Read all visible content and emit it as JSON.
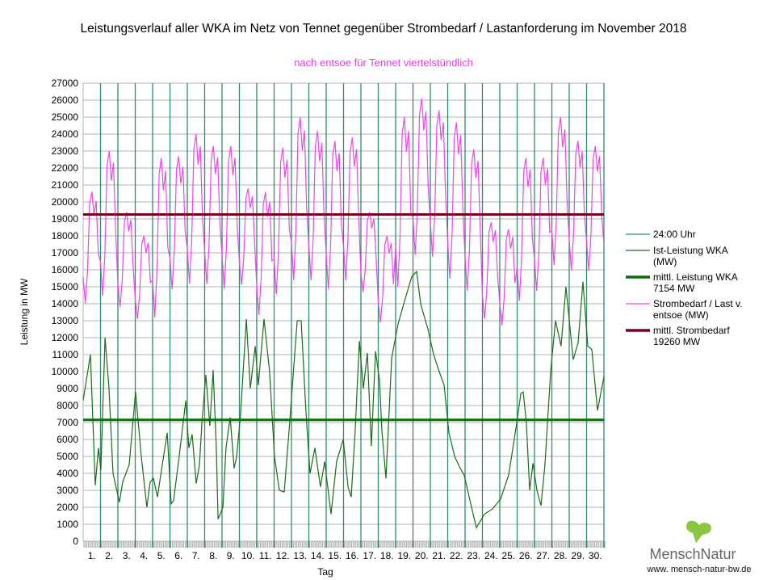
{
  "chart_data": {
    "type": "line",
    "title": "Leistungsverlauf aller WKA im Netz von Tennet gegenüber  Strombedarf / Lastanforderung im November 2018",
    "subtitle": "nach entsoe für Tennet viertelstündlich",
    "xlabel": "Tag",
    "ylabel": "Leistung in MW",
    "ylim": [
      0,
      27000
    ],
    "ytick_step": 1000,
    "xlim": [
      0,
      30
    ],
    "x_tick_labels": [
      "1.",
      "2.",
      "3.",
      "4.",
      "5.",
      "6.",
      "7.",
      "8.",
      "9.",
      "10.",
      "11.",
      "12.",
      "13.",
      "14.",
      "15.",
      "16.",
      "17.",
      "18.",
      "19.",
      "20.",
      "21.",
      "22.",
      "23.",
      "24.",
      "25.",
      "26.",
      "27.",
      "28.",
      "29.",
      "30."
    ],
    "grid": true,
    "legend_position": "right",
    "colors": {
      "midnight": "#2e8b6e",
      "wind": "#1a6b1a",
      "wind_mean": "#0d6b0d",
      "demand": "#ee44ee",
      "demand_mean": "#7a0020"
    },
    "legend": [
      {
        "key": "midnight",
        "line1": "24:00 Uhr",
        "line2": ""
      },
      {
        "key": "wind",
        "line1": "Ist-Leistung WKA",
        "line2": "(MW)"
      },
      {
        "key": "wind_mean",
        "line1": "mittl. Leistung WKA",
        "line2": "7154 MW"
      },
      {
        "key": "demand",
        "line1": "Strombedarf / Last v.",
        "line2": "entsoe (MW)"
      },
      {
        "key": "demand_mean",
        "line1": "mittl. Strombedarf",
        "line2": "19260 MW"
      }
    ],
    "wind_mean": 7154,
    "demand_mean": 19260,
    "demand_daily_min": [
      13900,
      14300,
      13700,
      13000,
      13000,
      14700,
      15000,
      15000,
      14700,
      15000,
      13200,
      14400,
      15200,
      15200,
      14700,
      15200,
      14600,
      12800,
      14800,
      16700,
      16600,
      15300,
      14600,
      13000,
      12600,
      14000,
      14600,
      16100,
      15800,
      15800
    ],
    "demand_daily_max": [
      20600,
      23000,
      19400,
      18000,
      22600,
      22700,
      24000,
      23300,
      23300,
      20800,
      20600,
      23200,
      25000,
      24200,
      23600,
      23800,
      19400,
      18000,
      25000,
      26100,
      25400,
      24700,
      23100,
      18800,
      18400,
      22600,
      22600,
      25000,
      23600,
      23300
    ],
    "wind_series": [
      [
        0,
        8300
      ],
      [
        0.42,
        11000
      ],
      [
        0.7,
        3300
      ],
      [
        0.88,
        5500
      ],
      [
        1.02,
        4200
      ],
      [
        1.26,
        12000
      ],
      [
        1.49,
        9000
      ],
      [
        1.72,
        4000
      ],
      [
        2.09,
        2300
      ],
      [
        2.28,
        3500
      ],
      [
        2.65,
        4500
      ],
      [
        3.02,
        8800
      ],
      [
        3.35,
        5000
      ],
      [
        3.67,
        2000
      ],
      [
        3.86,
        3500
      ],
      [
        4.05,
        3700
      ],
      [
        4.28,
        2600
      ],
      [
        4.51,
        4200
      ],
      [
        4.84,
        6400
      ],
      [
        5.07,
        2200
      ],
      [
        5.21,
        2400
      ],
      [
        5.53,
        5000
      ],
      [
        5.91,
        8300
      ],
      [
        6.09,
        5500
      ],
      [
        6.28,
        6300
      ],
      [
        6.51,
        3400
      ],
      [
        6.7,
        4500
      ],
      [
        6.84,
        7000
      ],
      [
        7.07,
        9800
      ],
      [
        7.3,
        6800
      ],
      [
        7.49,
        10100
      ],
      [
        7.67,
        5500
      ],
      [
        7.77,
        1300
      ],
      [
        8.05,
        2000
      ],
      [
        8.23,
        5500
      ],
      [
        8.47,
        7300
      ],
      [
        8.7,
        4300
      ],
      [
        8.84,
        5000
      ],
      [
        9.07,
        7500
      ],
      [
        9.4,
        13100
      ],
      [
        9.63,
        9000
      ],
      [
        9.91,
        11500
      ],
      [
        10.09,
        9200
      ],
      [
        10.42,
        13100
      ],
      [
        10.74,
        10000
      ],
      [
        11.02,
        5000
      ],
      [
        11.3,
        3000
      ],
      [
        11.58,
        2900
      ],
      [
        11.86,
        6500
      ],
      [
        12.33,
        13000
      ],
      [
        12.56,
        13000
      ],
      [
        12.84,
        7500
      ],
      [
        13.07,
        4000
      ],
      [
        13.35,
        5500
      ],
      [
        13.67,
        3200
      ],
      [
        13.91,
        4700
      ],
      [
        14.28,
        1600
      ],
      [
        14.6,
        4700
      ],
      [
        14.98,
        6000
      ],
      [
        15.26,
        3200
      ],
      [
        15.44,
        2600
      ],
      [
        15.67,
        6500
      ],
      [
        15.91,
        11800
      ],
      [
        16.14,
        9000
      ],
      [
        16.37,
        11100
      ],
      [
        16.6,
        5600
      ],
      [
        16.84,
        11200
      ],
      [
        17.07,
        9500
      ],
      [
        17.21,
        6500
      ],
      [
        17.44,
        3700
      ],
      [
        17.77,
        10800
      ],
      [
        18.14,
        12800
      ],
      [
        18.47,
        14000
      ],
      [
        18.93,
        15600
      ],
      [
        19.21,
        15900
      ],
      [
        19.44,
        14000
      ],
      [
        19.86,
        12500
      ],
      [
        20.19,
        11000
      ],
      [
        20.51,
        10000
      ],
      [
        20.79,
        9200
      ],
      [
        21.07,
        6400
      ],
      [
        21.4,
        5000
      ],
      [
        21.72,
        4300
      ],
      [
        21.95,
        3900
      ],
      [
        22.42,
        1800
      ],
      [
        22.65,
        800
      ],
      [
        23.12,
        1600
      ],
      [
        23.58,
        1900
      ],
      [
        24.05,
        2500
      ],
      [
        24.51,
        3900
      ],
      [
        24.98,
        7000
      ],
      [
        25.21,
        8700
      ],
      [
        25.35,
        8800
      ],
      [
        25.53,
        7000
      ],
      [
        25.72,
        3000
      ],
      [
        25.91,
        4600
      ],
      [
        26.14,
        3000
      ],
      [
        26.37,
        2100
      ],
      [
        26.6,
        4500
      ],
      [
        26.93,
        10000
      ],
      [
        27.21,
        13000
      ],
      [
        27.53,
        11500
      ],
      [
        27.81,
        15000
      ],
      [
        28.23,
        10700
      ],
      [
        28.51,
        11700
      ],
      [
        28.79,
        15300
      ],
      [
        29.07,
        11500
      ],
      [
        29.3,
        11300
      ],
      [
        29.63,
        7700
      ],
      [
        30,
        9700
      ]
    ]
  },
  "logo": {
    "brand": "MenschNatur",
    "url": "www. mensch-natur-bw.de"
  }
}
